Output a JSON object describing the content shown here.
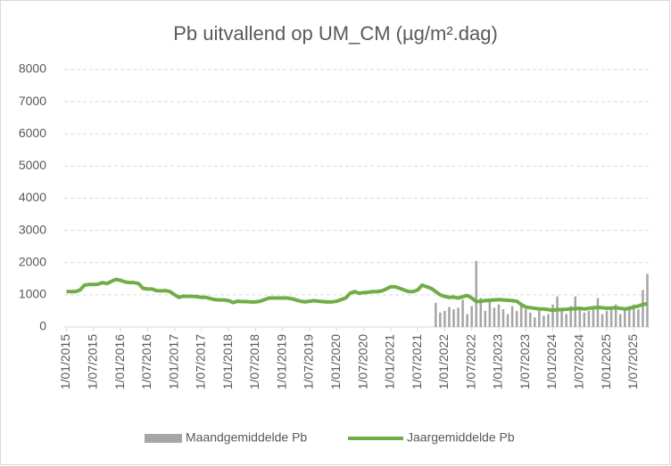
{
  "chart_data": {
    "type": "bar-line",
    "title": "Pb uitvallend op UM_CM (µg/m².dag)",
    "categories": [
      "1/01/2015",
      null,
      null,
      null,
      null,
      null,
      "1/07/2015",
      null,
      null,
      null,
      null,
      null,
      "1/01/2016",
      null,
      null,
      null,
      null,
      null,
      "1/07/2016",
      null,
      null,
      null,
      null,
      null,
      "1/01/2017",
      null,
      null,
      null,
      null,
      null,
      "1/07/2017",
      null,
      null,
      null,
      null,
      null,
      "1/01/2018",
      null,
      null,
      null,
      null,
      null,
      "1/07/2018",
      null,
      null,
      null,
      null,
      null,
      "1/01/2019",
      null,
      null,
      null,
      null,
      null,
      "1/07/2019",
      null,
      null,
      null,
      null,
      null,
      "1/01/2020",
      null,
      null,
      null,
      null,
      null,
      "1/07/2020",
      null,
      null,
      null,
      null,
      null,
      "1/01/2021",
      null,
      null,
      null,
      null,
      null,
      "1/07/2021",
      null,
      null,
      null,
      null,
      null,
      "1/01/2022",
      null,
      null,
      null,
      null,
      null,
      "1/07/2022",
      null,
      null,
      null,
      null,
      null,
      "1/01/2023",
      null,
      null,
      null,
      null,
      null,
      "1/07/2023",
      null,
      null,
      null,
      null,
      null,
      "1/01/2024",
      null,
      null,
      null,
      null,
      null,
      "1/07/2024",
      null,
      null,
      null,
      null,
      null,
      "1/01/2025",
      null,
      null,
      null,
      null,
      null,
      "1/07/2025",
      null,
      null,
      null
    ],
    "series": [
      {
        "name": "Maandgemiddelde Pb",
        "type": "bar",
        "color": "#a6a6a6",
        "values": [
          null,
          null,
          null,
          null,
          null,
          null,
          null,
          null,
          null,
          null,
          null,
          null,
          null,
          null,
          null,
          null,
          null,
          null,
          null,
          null,
          null,
          null,
          null,
          null,
          null,
          null,
          null,
          null,
          null,
          null,
          null,
          null,
          null,
          null,
          null,
          null,
          null,
          null,
          null,
          null,
          null,
          null,
          null,
          null,
          null,
          null,
          null,
          null,
          null,
          null,
          null,
          null,
          null,
          null,
          null,
          null,
          null,
          null,
          null,
          null,
          null,
          null,
          null,
          null,
          null,
          null,
          null,
          null,
          null,
          null,
          null,
          null,
          null,
          null,
          null,
          null,
          null,
          null,
          null,
          null,
          null,
          null,
          750,
          450,
          500,
          620,
          550,
          600,
          850,
          400,
          650,
          2050,
          900,
          500,
          820,
          600,
          700,
          550,
          400,
          650,
          500,
          700,
          550,
          450,
          300,
          500,
          350,
          400,
          700,
          950,
          550,
          400,
          650,
          950,
          600,
          450,
          500,
          600,
          900,
          400,
          500,
          550,
          700,
          400,
          600,
          650,
          700,
          550,
          1150,
          1650
        ]
      },
      {
        "name": "Jaargemiddelde Pb",
        "type": "line",
        "color": "#70ad47",
        "values": [
          1100,
          1100,
          1100,
          1150,
          1300,
          1320,
          1320,
          1330,
          1380,
          1350,
          1420,
          1480,
          1450,
          1400,
          1380,
          1380,
          1350,
          1200,
          1180,
          1180,
          1130,
          1120,
          1130,
          1100,
          1000,
          920,
          960,
          950,
          950,
          940,
          920,
          920,
          880,
          850,
          840,
          840,
          820,
          760,
          800,
          790,
          790,
          780,
          780,
          800,
          850,
          900,
          900,
          900,
          900,
          900,
          880,
          840,
          800,
          780,
          800,
          820,
          800,
          790,
          780,
          780,
          800,
          850,
          900,
          1050,
          1100,
          1050,
          1070,
          1080,
          1100,
          1100,
          1120,
          1180,
          1250,
          1250,
          1200,
          1150,
          1100,
          1100,
          1150,
          1300,
          1250,
          1200,
          1100,
          1000,
          950,
          920,
          930,
          900,
          940,
          980,
          900,
          790,
          800,
          820,
          830,
          840,
          850,
          840,
          830,
          820,
          800,
          700,
          620,
          600,
          580,
          560,
          560,
          540,
          520,
          540,
          540,
          550,
          560,
          570,
          580,
          560,
          580,
          600,
          610,
          600,
          580,
          590,
          600,
          580,
          560,
          580,
          620,
          650,
          700,
          720
        ]
      }
    ],
    "ylim": [
      0,
      8000
    ],
    "yticks": [
      0,
      1000,
      2000,
      3000,
      4000,
      5000,
      6000,
      7000,
      8000
    ],
    "grid": true,
    "legend": "bottom"
  }
}
